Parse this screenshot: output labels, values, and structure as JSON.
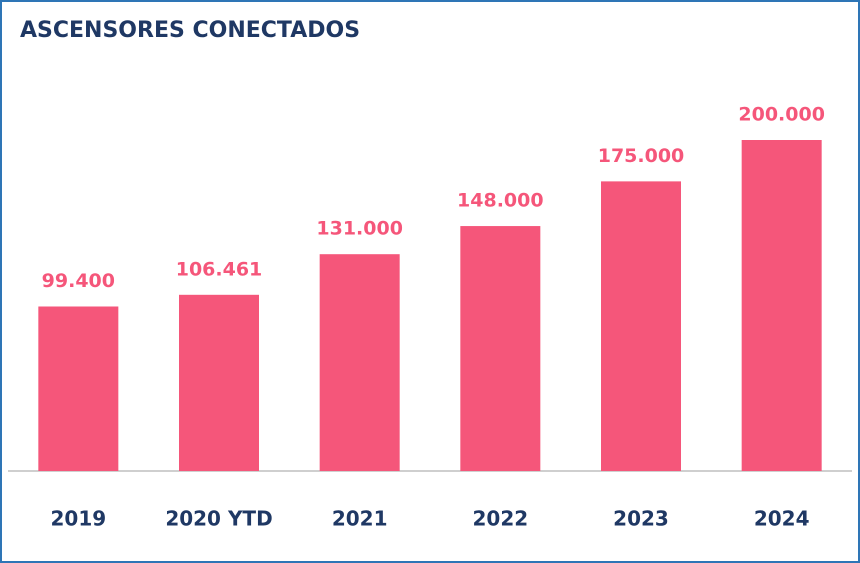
{
  "chart_data": {
    "type": "bar",
    "title": "ASCENSORES CONECTADOS",
    "categories": [
      "2019",
      "2020 YTD",
      "2021",
      "2022",
      "2023",
      "2024"
    ],
    "values": [
      99400,
      106461,
      131000,
      148000,
      175000,
      200000
    ],
    "value_labels": [
      "99.400",
      "106.461",
      "131.000",
      "148.000",
      "175.000",
      "200.000"
    ],
    "color": "#f5567a"
  }
}
